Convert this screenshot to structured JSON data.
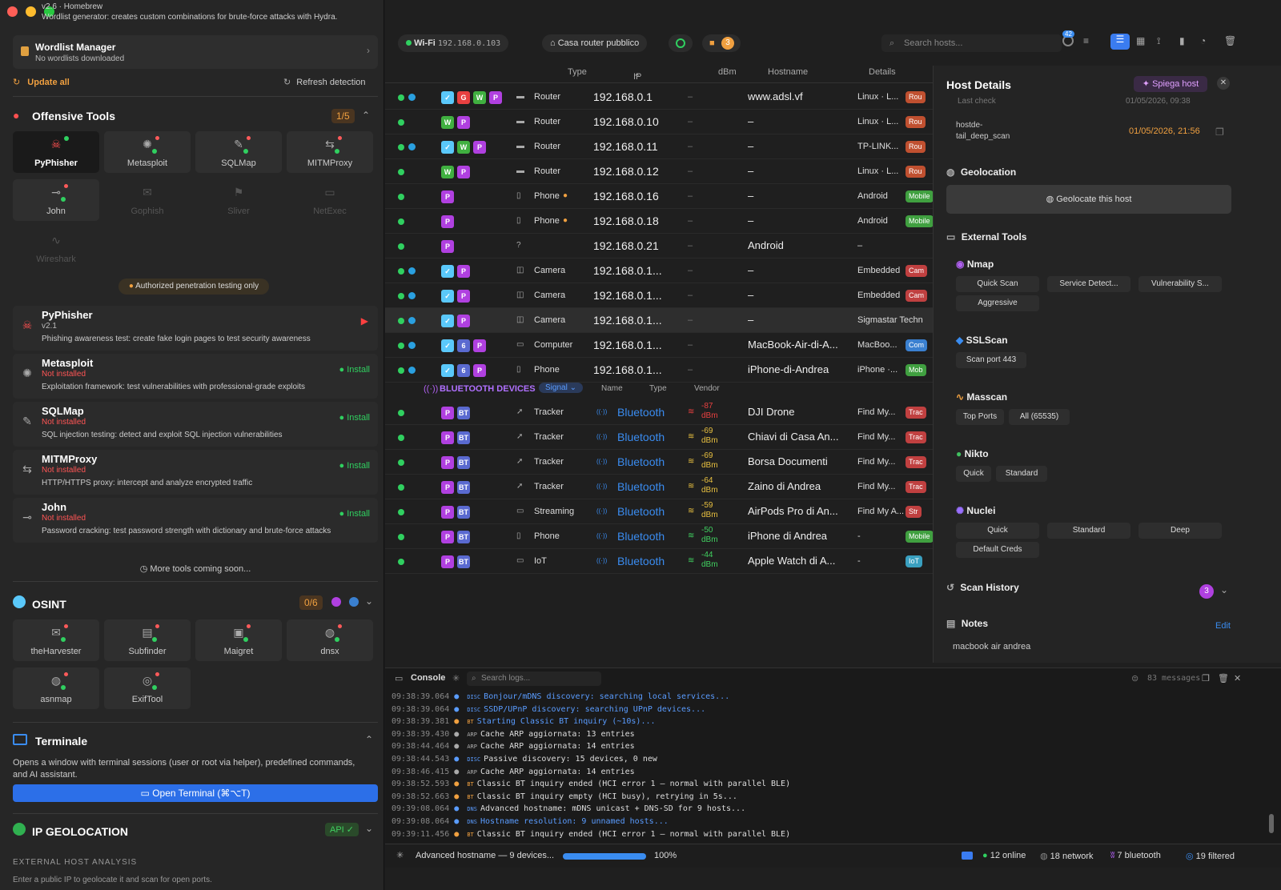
{
  "sidebar": {
    "header_title": "v2.6 · Homebrew",
    "header_desc": "Wordlist generator: creates custom combinations for brute-force attacks with Hydra.",
    "wordlist": {
      "title": "Wordlist Manager",
      "sub": "No wordlists downloaded"
    },
    "update_all": "Update all",
    "refresh": "Refresh detection",
    "offensive": {
      "title": "Offensive Tools",
      "count": "1/5",
      "tiles": [
        "PyPhisher",
        "Metasploit",
        "SQLMap",
        "MITMProxy",
        "John",
        "Gophish",
        "Sliver",
        "NetExec",
        "Wireshark"
      ],
      "warning": "Authorized penetration testing only",
      "tools": [
        {
          "name": "PyPhisher",
          "status": "v2.1",
          "desc": "Phishing awareness test: create fake login pages to test security awareness"
        },
        {
          "name": "Metasploit",
          "status": "Not installed",
          "desc": "Exploitation framework: test vulnerabilities with professional-grade exploits",
          "action": "Install"
        },
        {
          "name": "SQLMap",
          "status": "Not installed",
          "desc": "SQL injection testing: detect and exploit SQL injection vulnerabilities",
          "action": "Install"
        },
        {
          "name": "MITMProxy",
          "status": "Not installed",
          "desc": "HTTP/HTTPS proxy: intercept and analyze encrypted traffic",
          "action": "Install"
        },
        {
          "name": "John",
          "status": "Not installed",
          "desc": "Password cracking: test password strength with dictionary and brute-force attacks",
          "action": "Install"
        }
      ],
      "more": "More tools coming soon..."
    },
    "osint": {
      "title": "OSINT",
      "count": "0/6",
      "tiles": [
        "theHarvester",
        "Subfinder",
        "Maigret",
        "dnsx",
        "asnmap",
        "ExifTool"
      ]
    },
    "terminal": {
      "title": "Terminale",
      "desc": "Opens a window with terminal sessions (user or root via helper), predefined commands, and AI assistant.",
      "button": "Open Terminal (⌘⌥T)"
    },
    "geo": {
      "title": "IP GEOLOCATION",
      "badge": "API ✓",
      "sub": "EXTERNAL HOST ANALYSIS",
      "desc": "Enter a public IP to geolocate it and scan for open ports."
    }
  },
  "topbar": {
    "wifi": "Wi-Fi",
    "ip": "192.168.0.103",
    "router": "Casa router pubblico",
    "cam_count": "3",
    "search_placeholder": "Search hosts...",
    "notif": "42"
  },
  "table": {
    "headers": [
      "Type",
      "IP",
      "dBm",
      "Hostname",
      "Details"
    ],
    "rows": [
      {
        "tags": [
          "c",
          "g",
          "w",
          "p"
        ],
        "labels": [
          "✓",
          "G",
          "W",
          "P"
        ],
        "type": "Router",
        "ip": "192.168.0.1",
        "dbm": "–",
        "host": "www.adsl.vf",
        "det": "Linux · L...",
        "badge": "Rou",
        "bc": "#c05030",
        "shield": true
      },
      {
        "tags": [
          "w",
          "p"
        ],
        "labels": [
          "W",
          "P"
        ],
        "type": "Router",
        "ip": "192.168.0.10",
        "dbm": "–",
        "host": "–",
        "det": "Linux · L...",
        "badge": "Rou",
        "bc": "#c05030",
        "shield": false
      },
      {
        "tags": [
          "c",
          "w",
          "p"
        ],
        "labels": [
          "✓",
          "W",
          "P"
        ],
        "type": "Router",
        "ip": "192.168.0.11",
        "dbm": "–",
        "host": "–",
        "det": "TP-LINK...",
        "badge": "Rou",
        "bc": "#c05030",
        "shield": true
      },
      {
        "tags": [
          "w",
          "p"
        ],
        "labels": [
          "W",
          "P"
        ],
        "type": "Router",
        "ip": "192.168.0.12",
        "dbm": "–",
        "host": "–",
        "det": "Linux · L...",
        "badge": "Rou",
        "bc": "#c05030",
        "shield": false
      },
      {
        "tags": [
          "p"
        ],
        "labels": [
          "P"
        ],
        "type": "Phone",
        "ip": "192.168.0.16",
        "dbm": "–",
        "host": "–",
        "det": "Android",
        "badge": "Mobile",
        "bc": "#40a040",
        "shield": false
      },
      {
        "tags": [
          "p"
        ],
        "labels": [
          "P"
        ],
        "type": "Phone",
        "ip": "192.168.0.18",
        "dbm": "–",
        "host": "–",
        "det": "Android",
        "badge": "Mobile",
        "bc": "#40a040",
        "shield": false
      },
      {
        "tags": [
          "p"
        ],
        "labels": [
          "P"
        ],
        "type": "",
        "ip": "192.168.0.21",
        "dbm": "–",
        "host": "Android",
        "det": "–",
        "badge": "",
        "bc": "",
        "shield": false
      },
      {
        "tags": [
          "c",
          "p"
        ],
        "labels": [
          "✓",
          "P"
        ],
        "type": "Camera",
        "ip": "192.168.0.1...",
        "dbm": "–",
        "host": "–",
        "det": "Embedded",
        "badge": "Cam",
        "bc": "#c04040",
        "shield": true
      },
      {
        "tags": [
          "c",
          "p"
        ],
        "labels": [
          "✓",
          "P"
        ],
        "type": "Camera",
        "ip": "192.168.0.1...",
        "dbm": "–",
        "host": "–",
        "det": "Embedded",
        "badge": "Cam",
        "bc": "#c04040",
        "shield": true
      },
      {
        "tags": [
          "c",
          "p"
        ],
        "labels": [
          "✓",
          "P"
        ],
        "type": "Camera",
        "ip": "192.168.0.1...",
        "dbm": "–",
        "host": "–",
        "det": "Sigmastar Techn",
        "badge": "",
        "bc": "",
        "shield": true
      },
      {
        "tags": [
          "c",
          "b",
          "p"
        ],
        "labels": [
          "✓",
          "6",
          "P"
        ],
        "type": "Computer",
        "ip": "192.168.0.1...",
        "dbm": "–",
        "host": "MacBook-Air-di-A...",
        "det": "MacBoo...",
        "badge": "Com",
        "bc": "#3a80d0",
        "shield": true
      },
      {
        "tags": [
          "c",
          "b",
          "p"
        ],
        "labels": [
          "✓",
          "6",
          "P"
        ],
        "type": "Phone",
        "ip": "192.168.0.1...",
        "dbm": "–",
        "host": "iPhone-di-Andrea",
        "det": "iPhone ·...",
        "badge": "Mob",
        "bc": "#40a040",
        "shield": true
      }
    ],
    "bt_header": "BLUETOOTH DEVICES",
    "bt_sort": [
      "Signal",
      "Name",
      "Type",
      "Vendor"
    ],
    "bt_rows": [
      {
        "type": "Tracker",
        "dbm": "-87",
        "host": "DJI Drone",
        "det": "Find My...",
        "badge": "Trac",
        "c": "r"
      },
      {
        "type": "Tracker",
        "dbm": "-69",
        "host": "Chiavi di Casa An...",
        "det": "Find My...",
        "badge": "Trac",
        "c": "y"
      },
      {
        "type": "Tracker",
        "dbm": "-69",
        "host": "Borsa Documenti",
        "det": "Find My...",
        "badge": "Trac",
        "c": "y"
      },
      {
        "type": "Tracker",
        "dbm": "-64",
        "host": "Zaino di Andrea",
        "det": "Find My...",
        "badge": "Trac",
        "c": "y"
      },
      {
        "type": "Streaming",
        "dbm": "-59",
        "host": "AirPods Pro di An...",
        "det": "Find My A...",
        "badge": "Str",
        "c": "y"
      },
      {
        "type": "Phone",
        "dbm": "-50",
        "host": "iPhone di Andrea",
        "det": "-",
        "badge": "Mobile",
        "c": "g"
      },
      {
        "type": "IoT",
        "dbm": "-44",
        "host": "Apple Watch di A...",
        "det": "-",
        "badge": "IoT",
        "c": "g"
      }
    ],
    "bt_label": "Bluetooth",
    "dbm_unit": "dBm"
  },
  "host_details": {
    "title": "Host Details",
    "explain": "Spiega host",
    "last_check_label": "Last check",
    "last_check": "01/05/2026, 09:38",
    "deep_label": "hostde-tail_deep_scan",
    "deep_value": "01/05/2026, 21:56",
    "geolocation": "Geolocation",
    "geo_btn": "Geolocate this host",
    "external": "External Tools",
    "nmap": "Nmap",
    "nmap_btns": [
      "Quick Scan",
      "Service Detect...",
      "Vulnerability S...",
      "Aggressive"
    ],
    "sslscan": "SSLScan",
    "ssl_btns": [
      "Scan port 443"
    ],
    "masscan": "Masscan",
    "mass_btns": [
      "Top Ports",
      "All (65535)"
    ],
    "nikto": "Nikto",
    "nikto_btns": [
      "Quick",
      "Standard"
    ],
    "nuclei": "Nuclei",
    "nuclei_btns": [
      "Quick",
      "Standard",
      "Deep",
      "Default Creds"
    ],
    "history": "Scan History",
    "history_count": "3",
    "notes": "Notes",
    "edit": "Edit",
    "note_text": "macbook air andrea"
  },
  "console": {
    "title": "Console",
    "search": "Search logs...",
    "messages": "83 messages",
    "lines": [
      {
        "ts": "09:38:39.064",
        "tag": "DISC",
        "msg": "Bonjour/mDNS discovery: searching local services...",
        "c": "#5a9cff"
      },
      {
        "ts": "09:38:39.064",
        "tag": "DISC",
        "msg": "SSDP/UPnP discovery: searching UPnP devices...",
        "c": "#5a9cff"
      },
      {
        "ts": "09:38:39.381",
        "tag": "BT",
        "msg": "Starting Classic BT inquiry (~10s)...",
        "c": "#5a9cff"
      },
      {
        "ts": "09:38:39.430",
        "tag": "ARP",
        "msg": "Cache ARP aggiornata: 13 entries",
        "c": "#ddd"
      },
      {
        "ts": "09:38:44.464",
        "tag": "ARP",
        "msg": "Cache ARP aggiornata: 14 entries",
        "c": "#ddd"
      },
      {
        "ts": "09:38:44.543",
        "tag": "DISC",
        "msg": "Passive discovery: 15 devices, 0 new",
        "c": "#ddd"
      },
      {
        "ts": "09:38:46.415",
        "tag": "ARP",
        "msg": "Cache ARP aggiornata: 14 entries",
        "c": "#ddd"
      },
      {
        "ts": "09:38:52.593",
        "tag": "BT",
        "msg": "Classic BT inquiry ended (HCI error 1 — normal with parallel BLE)",
        "c": "#ddd"
      },
      {
        "ts": "09:38:52.663",
        "tag": "BT",
        "msg": "Classic BT inquiry empty (HCI busy), retrying in 5s...",
        "c": "#ddd"
      },
      {
        "ts": "09:39:08.064",
        "tag": "DNS",
        "msg": "Advanced hostname: mDNS unicast + DNS-SD for 9 hosts...",
        "c": "#ddd"
      },
      {
        "ts": "09:39:08.064",
        "tag": "DNS",
        "msg": "Hostname resolution: 9 unnamed hosts...",
        "c": "#5a9cff"
      },
      {
        "ts": "09:39:11.456",
        "tag": "BT",
        "msg": "Classic BT inquiry ended (HCI error 1 — normal with parallel BLE)",
        "c": "#ddd"
      }
    ]
  },
  "status": {
    "task": "Advanced hostname — 9 devices...",
    "progress": 1.0,
    "progress_label": "100%",
    "online": "12 online",
    "network": "18 network",
    "bluetooth": "7 bluetooth",
    "filtered": "19 filtered"
  }
}
